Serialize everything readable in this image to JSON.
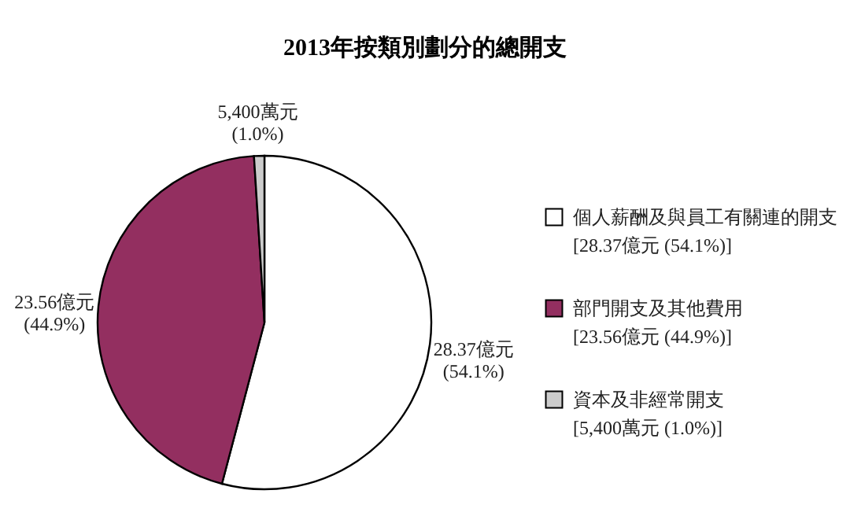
{
  "chart_data": {
    "type": "pie",
    "title": "2013年按類別劃分的總開支",
    "categories": [
      "個人薪酬及與員工有關連的開支",
      "部門開支及其他費用",
      "資本及非經常開支"
    ],
    "values": [
      54.1,
      44.9,
      1.0
    ],
    "colors": [
      "#ffffff",
      "#932f60",
      "#cccccc"
    ],
    "value_labels": [
      "28.37億元\n(54.1%)",
      "23.56億元\n(44.9%)",
      "5,400萬元\n(1.0%)"
    ],
    "annotations": [
      "[28.37億元 (54.1%)]",
      "[23.56億元 (44.9%)]",
      "[5,400萬元 (1.0%)]"
    ],
    "legend": "right"
  }
}
